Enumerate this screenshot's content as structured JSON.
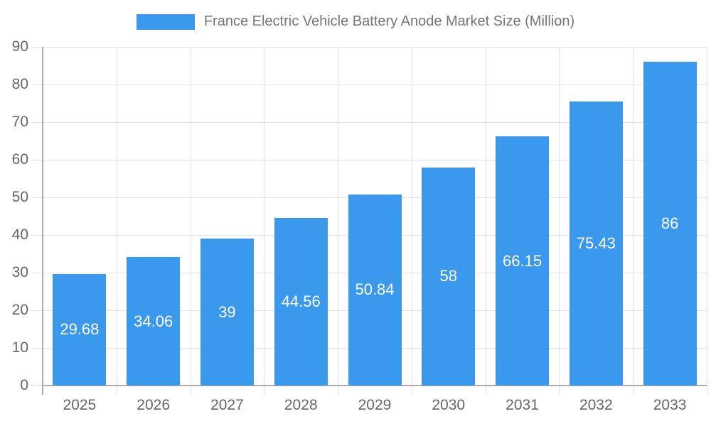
{
  "chart_data": {
    "type": "bar",
    "title": "France Electric Vehicle Battery Anode Market Size (Million)",
    "categories": [
      "2025",
      "2026",
      "2027",
      "2028",
      "2029",
      "2030",
      "2031",
      "2032",
      "2033"
    ],
    "values": [
      29.68,
      34.06,
      39,
      44.56,
      50.84,
      58,
      66.15,
      75.43,
      86
    ],
    "value_labels": [
      "29.68",
      "34.06",
      "39",
      "44.56",
      "50.84",
      "58",
      "66.15",
      "75.43",
      "86"
    ],
    "xlabel": "",
    "ylabel": "",
    "ylim": [
      0,
      90
    ],
    "yticks": [
      0,
      10,
      20,
      30,
      40,
      50,
      60,
      70,
      80,
      90
    ],
    "grid": "both",
    "legend_position": "top-center",
    "series_name": "France Electric Vehicle Battery Anode Market Size (Million)",
    "colors": {
      "bar": "#3a99ec",
      "grid": "#e2e2e2",
      "axis": "#acacac",
      "axis_label": "#666666",
      "value_label": "#ffffff",
      "legend_text": "#757575"
    }
  }
}
